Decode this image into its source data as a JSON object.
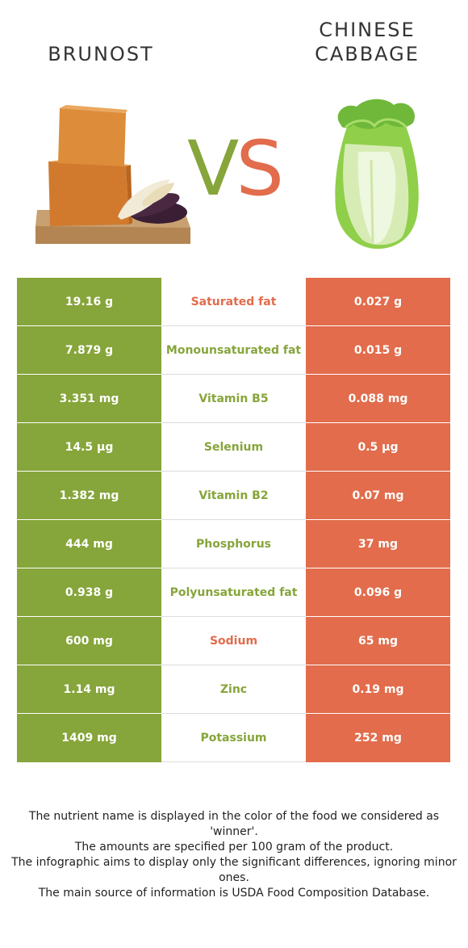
{
  "food_left": {
    "name": "BRUNOST",
    "color": "#86a53a"
  },
  "food_right": {
    "name_line1": "CHINESE",
    "name_line2": "CABBAGE",
    "color": "#e26c4c"
  },
  "vs": {
    "v": "V",
    "s": "S"
  },
  "rows": [
    {
      "left": "19.16 g",
      "nutrient": "Saturated fat",
      "right": "0.027 g",
      "winner_color": "#e26c4c"
    },
    {
      "left": "7.879 g",
      "nutrient": "Monounsaturated fat",
      "right": "0.015 g",
      "winner_color": "#86a53a"
    },
    {
      "left": "3.351 mg",
      "nutrient": "Vitamin B5",
      "right": "0.088 mg",
      "winner_color": "#86a53a"
    },
    {
      "left": "14.5 µg",
      "nutrient": "Selenium",
      "right": "0.5 µg",
      "winner_color": "#86a53a"
    },
    {
      "left": "1.382 mg",
      "nutrient": "Vitamin B2",
      "right": "0.07 mg",
      "winner_color": "#86a53a"
    },
    {
      "left": "444 mg",
      "nutrient": "Phosphorus",
      "right": "37 mg",
      "winner_color": "#86a53a"
    },
    {
      "left": "0.938 g",
      "nutrient": "Polyunsaturated fat",
      "right": "0.096 g",
      "winner_color": "#86a53a"
    },
    {
      "left": "600 mg",
      "nutrient": "Sodium",
      "right": "65 mg",
      "winner_color": "#e26c4c"
    },
    {
      "left": "1.14 mg",
      "nutrient": "Zinc",
      "right": "0.19 mg",
      "winner_color": "#86a53a"
    },
    {
      "left": "1409 mg",
      "nutrient": "Potassium",
      "right": "252 mg",
      "winner_color": "#86a53a"
    }
  ],
  "footer": {
    "line1": "The nutrient name is displayed in the color of the food we considered as 'winner'.",
    "line2": "The amounts are specified per 100 gram of the product.",
    "line3": "The infographic aims to display only the significant differences, ignoring minor ones.",
    "line4": "The main source of information is USDA Food Composition Database."
  }
}
